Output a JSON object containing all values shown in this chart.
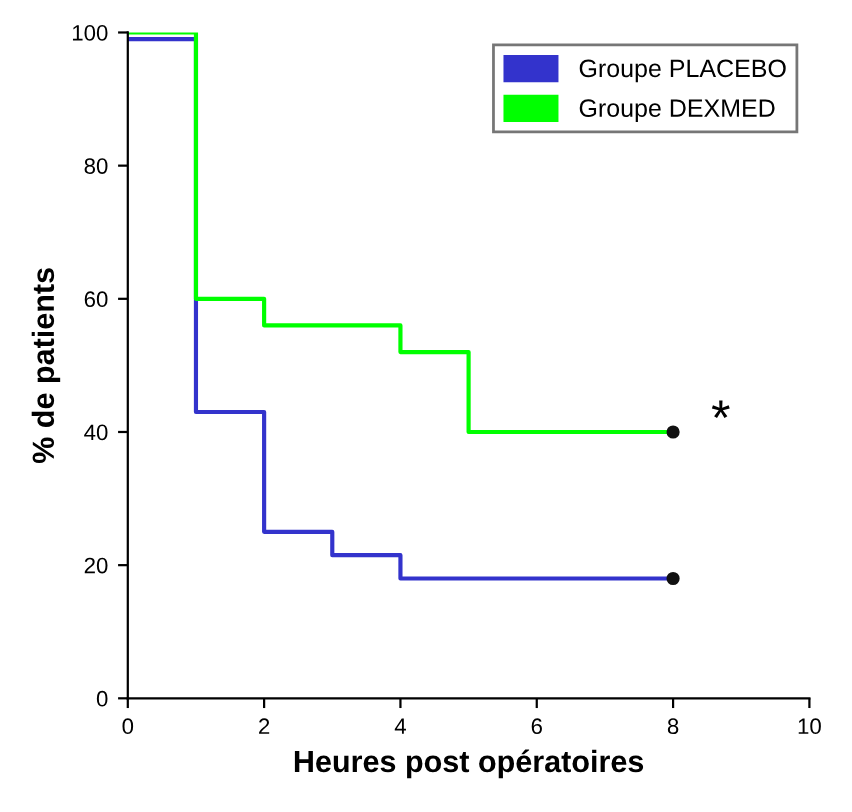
{
  "chart_data": {
    "type": "step",
    "xlabel": "Heures post opératoires",
    "ylabel": "% de patients",
    "series": [
      {
        "name": "Groupe PLACEBO",
        "color": "#3333cc",
        "x": [
          0,
          1,
          2,
          3,
          4,
          8
        ],
        "values": [
          99,
          43,
          25,
          21.5,
          18,
          18
        ]
      },
      {
        "name": "Groupe DEXMED",
        "color": "#00ff00",
        "x": [
          0,
          1,
          2,
          4,
          5,
          8
        ],
        "values": [
          100,
          60,
          56,
          52,
          40,
          40
        ]
      },
      {
        "type": "scatter",
        "color": "#111111",
        "x": [
          8,
          8
        ],
        "values": [
          40,
          18
        ]
      }
    ],
    "annotations": [
      "*"
    ],
    "xlim": [
      0,
      10
    ],
    "xticks": [
      0,
      2,
      4,
      6,
      8,
      10
    ],
    "ylim": [
      0,
      100
    ],
    "yticks": [
      0,
      20,
      40,
      60,
      80,
      100
    ],
    "grid": false,
    "legend": "top right"
  }
}
